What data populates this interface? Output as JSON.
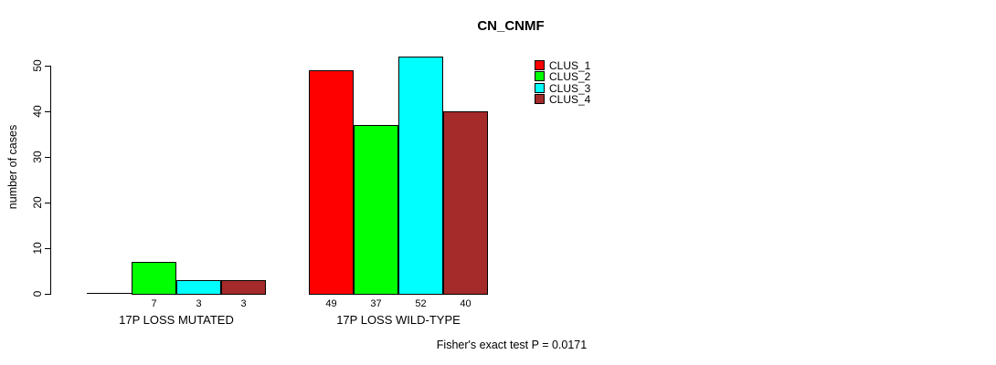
{
  "chart_data": {
    "type": "bar",
    "title": "CN_CNMF",
    "ylabel": "number of cases",
    "xlabel": "",
    "ylim": [
      0,
      50
    ],
    "yticks": [
      0,
      10,
      20,
      30,
      40,
      50
    ],
    "grid": false,
    "legend_position": "top-right",
    "categories": [
      "17P LOSS MUTATED",
      "17P LOSS WILD-TYPE"
    ],
    "series": [
      {
        "name": "CLUS_1",
        "color": "#FF0000",
        "values": [
          0,
          49
        ]
      },
      {
        "name": "CLUS_2",
        "color": "#00FF00",
        "values": [
          7,
          37
        ]
      },
      {
        "name": "CLUS_3",
        "color": "#00FFFF",
        "values": [
          3,
          52
        ]
      },
      {
        "name": "CLUS_4",
        "color": "#A52A2A",
        "values": [
          3,
          40
        ]
      }
    ],
    "bar_value_labels": [
      [
        "",
        "7",
        "3",
        "3"
      ],
      [
        "49",
        "37",
        "52",
        "40"
      ]
    ],
    "annotation": "Fisher's exact test P = 0.0171"
  }
}
